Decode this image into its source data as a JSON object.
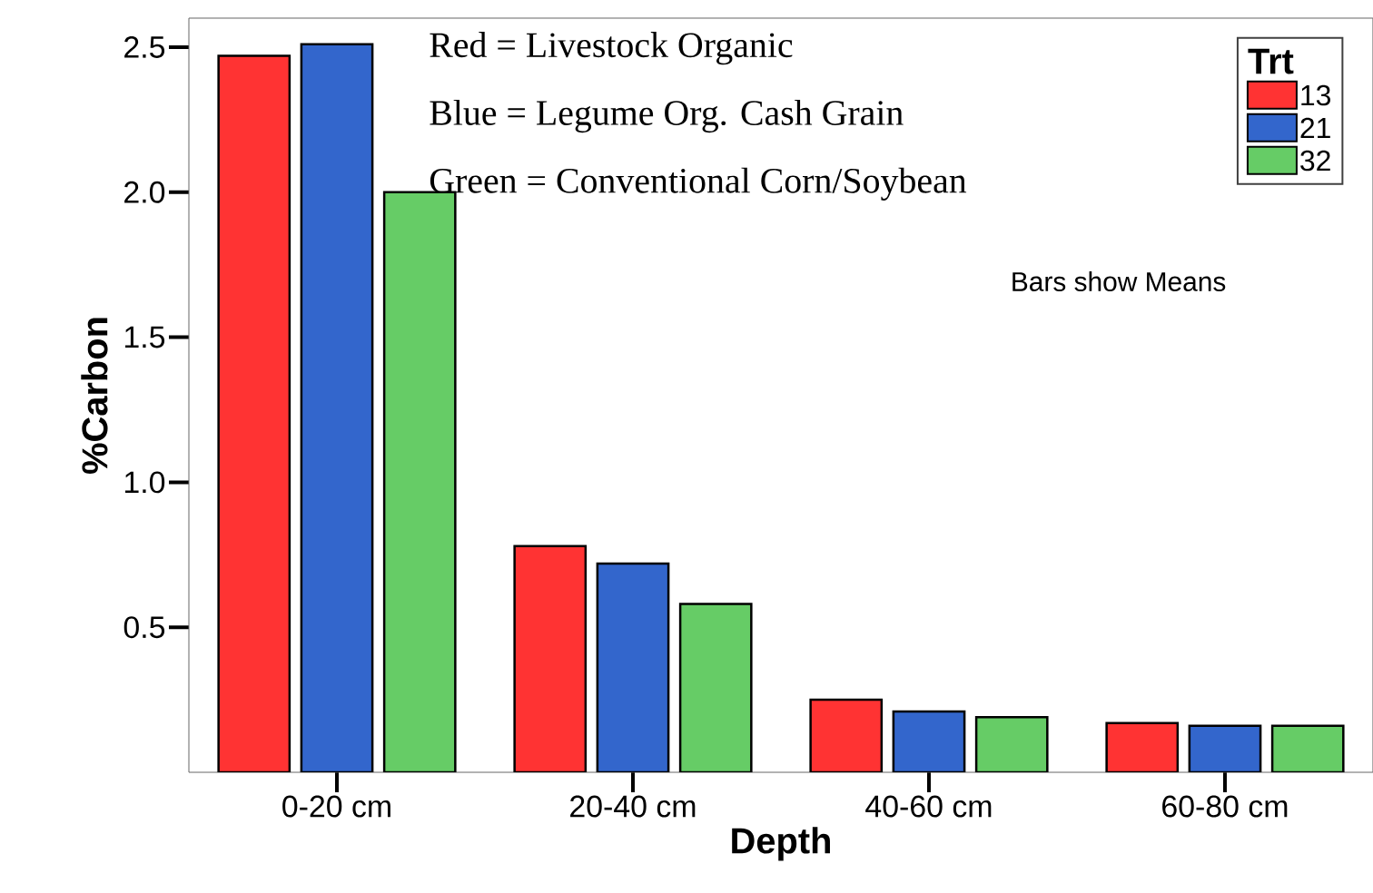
{
  "chart_data": {
    "type": "bar",
    "categories": [
      "0-20 cm",
      "20-40 cm",
      "40-60 cm",
      "60-80 cm"
    ],
    "series": [
      {
        "name": "13",
        "color": "#ff3333",
        "values": [
          2.47,
          0.78,
          0.25,
          0.17
        ]
      },
      {
        "name": "21",
        "color": "#3366cc",
        "values": [
          2.51,
          0.72,
          0.21,
          0.16
        ]
      },
      {
        "name": "32",
        "color": "#66cc66",
        "values": [
          2.0,
          0.58,
          0.19,
          0.16
        ]
      }
    ],
    "xlabel": "Depth",
    "ylabel": "%Carbon",
    "legend_title": "Trt",
    "legend": "top right",
    "ylim": [
      0,
      2.6
    ],
    "yticks": [
      0.5,
      {
        "value": 1,
        "label": "1.0"
      },
      1.5,
      {
        "value": 2,
        "label": "2.0"
      },
      2.5
    ],
    "annotations": [
      "Red = Livestock Organic",
      "Blue = Legume Org. Cash Grain",
      "Green = Conventional Corn/Soybean",
      "Bars show Means"
    ]
  }
}
